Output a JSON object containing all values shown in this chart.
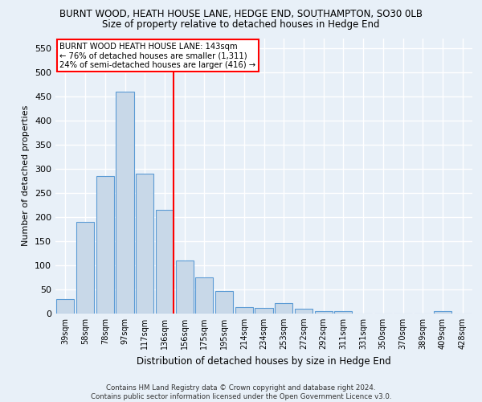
{
  "title": "BURNT WOOD, HEATH HOUSE LANE, HEDGE END, SOUTHAMPTON, SO30 0LB",
  "subtitle": "Size of property relative to detached houses in Hedge End",
  "xlabel": "Distribution of detached houses by size in Hedge End",
  "ylabel": "Number of detached properties",
  "bar_color": "#c8d8e8",
  "bar_edge_color": "#5b9bd5",
  "bin_labels": [
    "39sqm",
    "58sqm",
    "78sqm",
    "97sqm",
    "117sqm",
    "136sqm",
    "156sqm",
    "175sqm",
    "195sqm",
    "214sqm",
    "234sqm",
    "253sqm",
    "272sqm",
    "292sqm",
    "311sqm",
    "331sqm",
    "350sqm",
    "370sqm",
    "389sqm",
    "409sqm",
    "428sqm"
  ],
  "bar_values": [
    30,
    190,
    285,
    460,
    290,
    215,
    110,
    75,
    47,
    13,
    11,
    21,
    10,
    5,
    5,
    0,
    0,
    0,
    0,
    5,
    0
  ],
  "red_line_x": 5.43,
  "annotation_line1": "BURNT WOOD HEATH HOUSE LANE: 143sqm",
  "annotation_line2": "← 76% of detached houses are smaller (1,311)",
  "annotation_line3": "24% of semi-detached houses are larger (416) →",
  "ylim": [
    0,
    570
  ],
  "yticks": [
    0,
    50,
    100,
    150,
    200,
    250,
    300,
    350,
    400,
    450,
    500,
    550
  ],
  "footer1": "Contains HM Land Registry data © Crown copyright and database right 2024.",
  "footer2": "Contains public sector information licensed under the Open Government Licence v3.0.",
  "background_color": "#e8f0f8",
  "grid_color": "#ffffff"
}
